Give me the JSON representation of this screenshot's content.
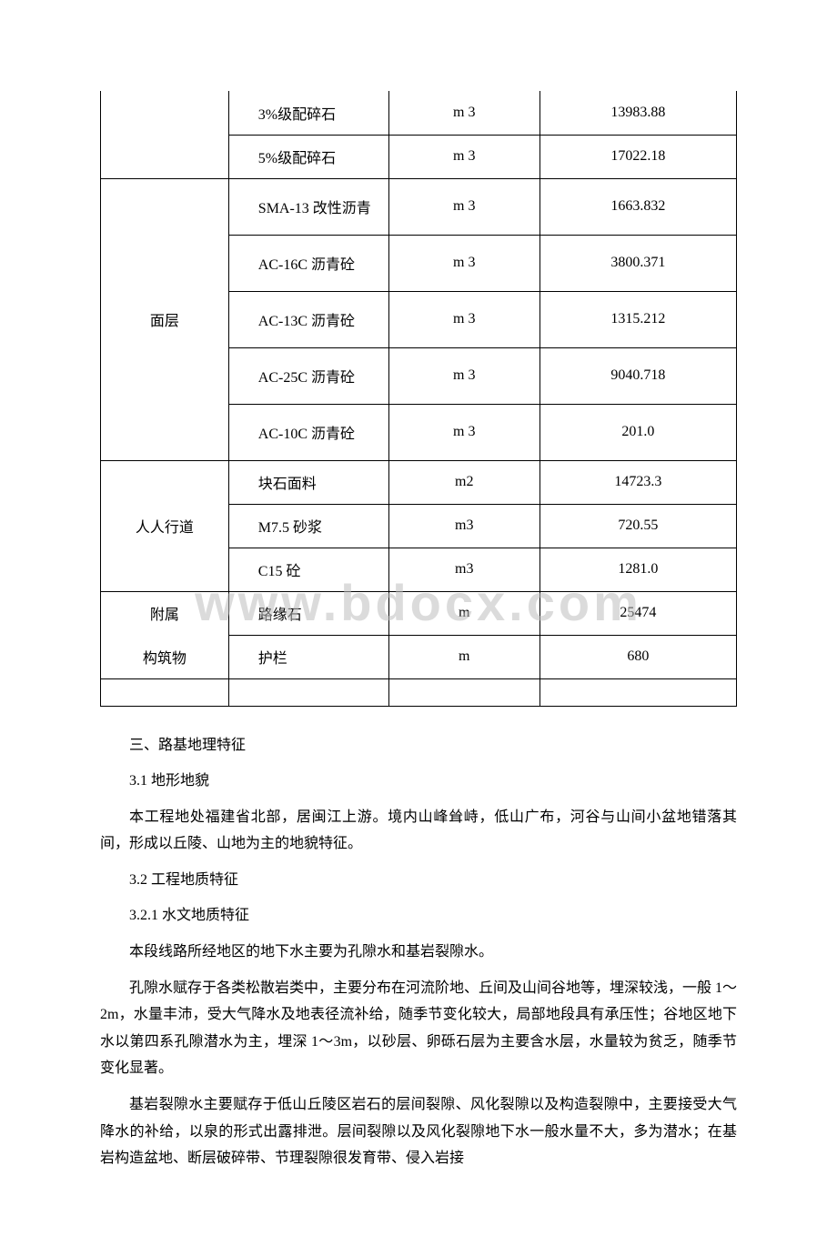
{
  "watermark": "www.bdocx.com",
  "table": {
    "columns": [
      {
        "key": "cat",
        "class": "col1"
      },
      {
        "key": "item",
        "class": "col2"
      },
      {
        "key": "unit",
        "class": "col3"
      },
      {
        "key": "qty",
        "class": "col4"
      }
    ],
    "rows": [
      {
        "cat": "",
        "catRowspan": 2,
        "catStyle": "border-top:none;",
        "item": "3%级配碎石",
        "unit": "m 3",
        "qty": "13983.88",
        "trClass": "",
        "cellStyle": "border-top:none;"
      },
      {
        "item": "5%级配碎石",
        "unit": "m 3",
        "qty": "17022.18"
      },
      {
        "cat": "面层",
        "catRowspan": 5,
        "item": "SMA-13 改性沥青",
        "unit": "m 3",
        "qty": "1663.832",
        "trClass": "tall"
      },
      {
        "item": "AC-16C 沥青砼",
        "unit": "m 3",
        "qty": "3800.371",
        "trClass": "tall"
      },
      {
        "item": "AC-13C 沥青砼",
        "unit": "m 3",
        "qty": "1315.212",
        "trClass": "tall"
      },
      {
        "item": "AC-25C 沥青砼",
        "unit": "m 3",
        "qty": "9040.718",
        "trClass": "tall"
      },
      {
        "item": "AC-10C 沥青砼",
        "unit": "m 3",
        "qty": "201.0",
        "trClass": "tall"
      },
      {
        "cat": "人人行道",
        "catRowspan": 3,
        "item": "块石面料",
        "unit": "m2",
        "qty": "14723.3",
        "trClass": "short"
      },
      {
        "item": "M7.5 砂浆",
        "unit": "m3",
        "qty": "720.55"
      },
      {
        "item": "C15 砼",
        "unit": "m3",
        "qty": "1281.0",
        "trClass": "short"
      },
      {
        "cat": "附属",
        "catRowspan": 1,
        "catStyle": "border-bottom:none;",
        "item": "路缘石",
        "unit": "m",
        "qty": "25474",
        "trClass": "short"
      },
      {
        "cat": "构筑物",
        "catRowspan": 1,
        "catStyle": "border-top:none;",
        "item": "护栏",
        "unit": "m",
        "qty": "680",
        "trClass": "short"
      }
    ]
  },
  "text": {
    "h1": "三、路基地理特征",
    "h2": "3.1 地形地貌",
    "p1": "本工程地处福建省北部，居闽江上游。境内山峰耸峙，低山广布，河谷与山间小盆地错落其间，形成以丘陵、山地为主的地貌特征。",
    "h3": "3.2 工程地质特征",
    "h4": "3.2.1 水文地质特征",
    "p2": "本段线路所经地区的地下水主要为孔隙水和基岩裂隙水。",
    "p3": "孔隙水赋存于各类松散岩类中，主要分布在河流阶地、丘间及山间谷地等，埋深较浅，一般 1～2m，水量丰沛，受大气降水及地表径流补给，随季节变化较大，局部地段具有承压性；谷地区地下水以第四系孔隙潜水为主，埋深 1～3m，以砂层、卵砾石层为主要含水层，水量较为贫乏，随季节变化显著。",
    "p4": "基岩裂隙水主要赋存于低山丘陵区岩石的层间裂隙、风化裂隙以及构造裂隙中，主要接受大气降水的补给，以泉的形式出露排泄。层间裂隙以及风化裂隙地下水一般水量不大，多为潜水；在基岩构造盆地、断层破碎带、节理裂隙很发育带、侵入岩接"
  }
}
